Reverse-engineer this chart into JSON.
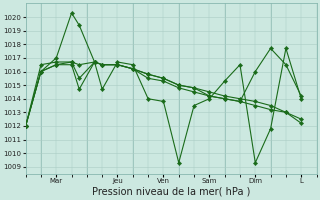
{
  "title": "",
  "xlabel": "Pression niveau de la mer( hPa )",
  "bg_color": "#cce8e0",
  "line_color": "#1a6b1a",
  "grid_color": "#aaccc4",
  "ylim": [
    1008.5,
    1021.0
  ],
  "yticks": [
    1009,
    1010,
    1011,
    1012,
    1013,
    1014,
    1015,
    1016,
    1017,
    1018,
    1019,
    1020
  ],
  "day_labels": [
    "Mar",
    "Jeu",
    "Ven",
    "Sam",
    "Dim",
    "L"
  ],
  "day_x": [
    24,
    72,
    108,
    144,
    180,
    216
  ],
  "xlim": [
    0,
    228
  ],
  "series": [
    {
      "x": [
        0,
        12,
        24,
        36,
        42,
        54,
        60,
        72,
        84,
        96,
        108,
        120,
        132,
        144,
        156,
        168,
        180,
        192,
        204,
        216
      ],
      "y": [
        1012,
        1016,
        1017,
        1020.3,
        1019.4,
        1016.7,
        1014.7,
        1016.7,
        1016.5,
        1014.0,
        1013.8,
        1009.3,
        1013.5,
        1014.0,
        1015.3,
        1016.5,
        1009.3,
        1011.8,
        1017.7,
        1014.0
      ]
    },
    {
      "x": [
        0,
        12,
        24,
        36,
        42,
        54,
        60,
        72,
        84,
        96,
        108,
        120,
        132,
        144,
        156,
        168,
        180,
        192,
        204,
        216
      ],
      "y": [
        1012,
        1016,
        1016.5,
        1016.5,
        1014.7,
        1016.7,
        1016.5,
        1016.5,
        1016.2,
        1015.5,
        1015.3,
        1014.8,
        1014.5,
        1014.2,
        1014.0,
        1013.8,
        1013.5,
        1013.2,
        1013.0,
        1012.5
      ]
    },
    {
      "x": [
        0,
        12,
        24,
        36,
        42,
        54,
        60,
        72,
        84,
        96,
        108,
        120,
        132,
        144,
        156,
        168,
        180,
        192,
        204,
        216
      ],
      "y": [
        1012,
        1016,
        1016.5,
        1016.7,
        1016.5,
        1016.7,
        1016.5,
        1016.5,
        1016.2,
        1015.8,
        1015.5,
        1015.0,
        1014.8,
        1014.5,
        1014.2,
        1014.0,
        1013.8,
        1013.5,
        1013.0,
        1012.2
      ]
    },
    {
      "x": [
        0,
        12,
        24,
        36,
        42,
        54,
        60,
        72,
        84,
        96,
        108,
        120,
        132,
        144,
        156,
        168,
        180,
        192,
        204,
        216
      ],
      "y": [
        1012,
        1016.5,
        1016.7,
        1016.7,
        1015.5,
        1016.7,
        1016.5,
        1016.5,
        1016.2,
        1015.8,
        1015.5,
        1015.0,
        1014.8,
        1014.2,
        1014.0,
        1013.8,
        1016.0,
        1017.7,
        1016.5,
        1014.2
      ]
    }
  ],
  "sep_x": [
    12,
    48,
    84,
    120,
    156,
    192
  ],
  "xlabel_fontsize": 7,
  "tick_labelsize": 5,
  "linewidth": 0.8,
  "markersize": 2.2
}
